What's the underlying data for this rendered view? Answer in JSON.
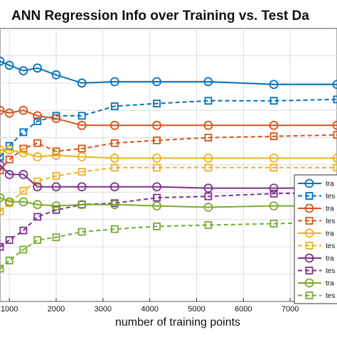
{
  "chart_data": {
    "type": "line",
    "title": "ANN Regression Info over Training vs. Test Da",
    "xlabel": "number of training points",
    "ylabel": "",
    "xlim": [
      800,
      8000
    ],
    "ylim": [
      0,
      1
    ],
    "grid": true,
    "legend_position": "right",
    "xticks": [
      1000,
      2000,
      3000,
      4000,
      5000,
      6000,
      7000
    ],
    "series": [
      {
        "name": "tra",
        "color": "#0072BD",
        "style": "solid",
        "x": [
          800,
          1000,
          1300,
          1600,
          2000,
          2550,
          3250,
          4150,
          5250,
          6650,
          8000
        ],
        "y": [
          0.88,
          0.865,
          0.845,
          0.855,
          0.83,
          0.8,
          0.805,
          0.805,
          0.805,
          0.795,
          0.795
        ]
      },
      {
        "name": "tes",
        "color": "#0072BD",
        "style": "dashed",
        "x": [
          800,
          1000,
          1300,
          1600,
          2000,
          2550,
          3250,
          4150,
          5250,
          6650,
          8000
        ],
        "y": [
          0.53,
          0.57,
          0.62,
          0.66,
          0.68,
          0.68,
          0.715,
          0.725,
          0.735,
          0.735,
          0.74
        ]
      },
      {
        "name": "tra",
        "color": "#D95319",
        "style": "solid",
        "x": [
          800,
          1000,
          1300,
          1600,
          2000,
          2550,
          3250,
          4150,
          5250,
          6650,
          8000
        ],
        "y": [
          0.7,
          0.69,
          0.7,
          0.68,
          0.67,
          0.645,
          0.645,
          0.645,
          0.645,
          0.645,
          0.645
        ]
      },
      {
        "name": "tes",
        "color": "#D95319",
        "style": "dashed",
        "x": [
          800,
          1000,
          1300,
          1600,
          2000,
          2550,
          3250,
          4150,
          5250,
          6650,
          8000
        ],
        "y": [
          0.48,
          0.52,
          0.56,
          0.58,
          0.55,
          0.56,
          0.58,
          0.59,
          0.6,
          0.605,
          0.61
        ]
      },
      {
        "name": "tra",
        "color": "#EDB120",
        "style": "solid",
        "x": [
          800,
          1000,
          1300,
          1600,
          2000,
          2550,
          3250,
          4150,
          5250,
          6650,
          8000
        ],
        "y": [
          0.555,
          0.555,
          0.545,
          0.53,
          0.535,
          0.53,
          0.525,
          0.525,
          0.525,
          0.525,
          0.525
        ]
      },
      {
        "name": "tes",
        "color": "#EDB120",
        "style": "dashed",
        "x": [
          800,
          1000,
          1300,
          1600,
          2000,
          2550,
          3250,
          4150,
          5250,
          6650,
          8000
        ],
        "y": [
          0.33,
          0.36,
          0.405,
          0.44,
          0.46,
          0.475,
          0.49,
          0.49,
          0.49,
          0.49,
          0.49
        ]
      },
      {
        "name": "tra",
        "color": "#7E2F8E",
        "style": "solid",
        "x": [
          800,
          1000,
          1300,
          1600,
          2000,
          2550,
          3250,
          4150,
          5250,
          6650,
          8000
        ],
        "y": [
          0.5,
          0.465,
          0.465,
          0.42,
          0.42,
          0.42,
          0.42,
          0.42,
          0.415,
          0.415,
          0.415
        ]
      },
      {
        "name": "tes",
        "color": "#7E2F8E",
        "style": "dashed",
        "x": [
          800,
          1000,
          1300,
          1600,
          2000,
          2550,
          3250,
          4150,
          5250,
          6650,
          8000
        ],
        "y": [
          0.2,
          0.225,
          0.26,
          0.31,
          0.335,
          0.355,
          0.36,
          0.38,
          0.385,
          0.395,
          0.4
        ]
      },
      {
        "name": "tra",
        "color": "#77AC30",
        "style": "solid",
        "x": [
          800,
          1000,
          1300,
          1600,
          2000,
          2550,
          3250,
          4150,
          5250,
          6650,
          8000
        ],
        "y": [
          0.38,
          0.365,
          0.365,
          0.355,
          0.35,
          0.355,
          0.355,
          0.35,
          0.345,
          0.35,
          0.35
        ]
      },
      {
        "name": "tes",
        "color": "#77AC30",
        "style": "dashed",
        "x": [
          800,
          1000,
          1300,
          1600,
          2000,
          2550,
          3250,
          4150,
          5250,
          6650,
          8000
        ],
        "y": [
          0.12,
          0.15,
          0.19,
          0.225,
          0.235,
          0.255,
          0.265,
          0.275,
          0.28,
          0.285,
          0.29
        ]
      }
    ]
  }
}
